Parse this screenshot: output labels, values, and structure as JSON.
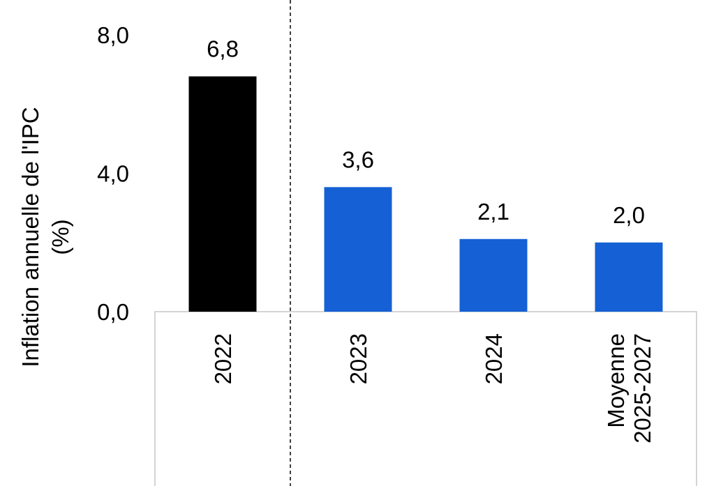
{
  "chart_data": {
    "type": "bar",
    "ylabel": "Inflation annuelle de l'IPC (%)",
    "ylabel_lines": [
      "Inflation annuelle de l'IPC",
      "(%)"
    ],
    "ylim": [
      0,
      8
    ],
    "yticks": [
      0,
      4,
      8
    ],
    "ytick_labels": [
      "0,0",
      "4,0",
      "8,0"
    ],
    "categories": [
      "2022",
      "2023",
      "2024",
      "Moyenne 2025-2027"
    ],
    "category_lines": [
      [
        "2022"
      ],
      [
        "2023"
      ],
      [
        "2024"
      ],
      [
        "Moyenne",
        "2025-2027"
      ]
    ],
    "values": [
      6.8,
      3.6,
      2.1,
      2.0
    ],
    "value_labels": [
      "6,8",
      "3,6",
      "2,1",
      "2,0"
    ],
    "bar_colors": [
      "#000000",
      "#1560d4",
      "#1560d4",
      "#1560d4"
    ],
    "grid": false,
    "legend": "none",
    "divider": "dashed vertical line between 2022 and 2023"
  }
}
